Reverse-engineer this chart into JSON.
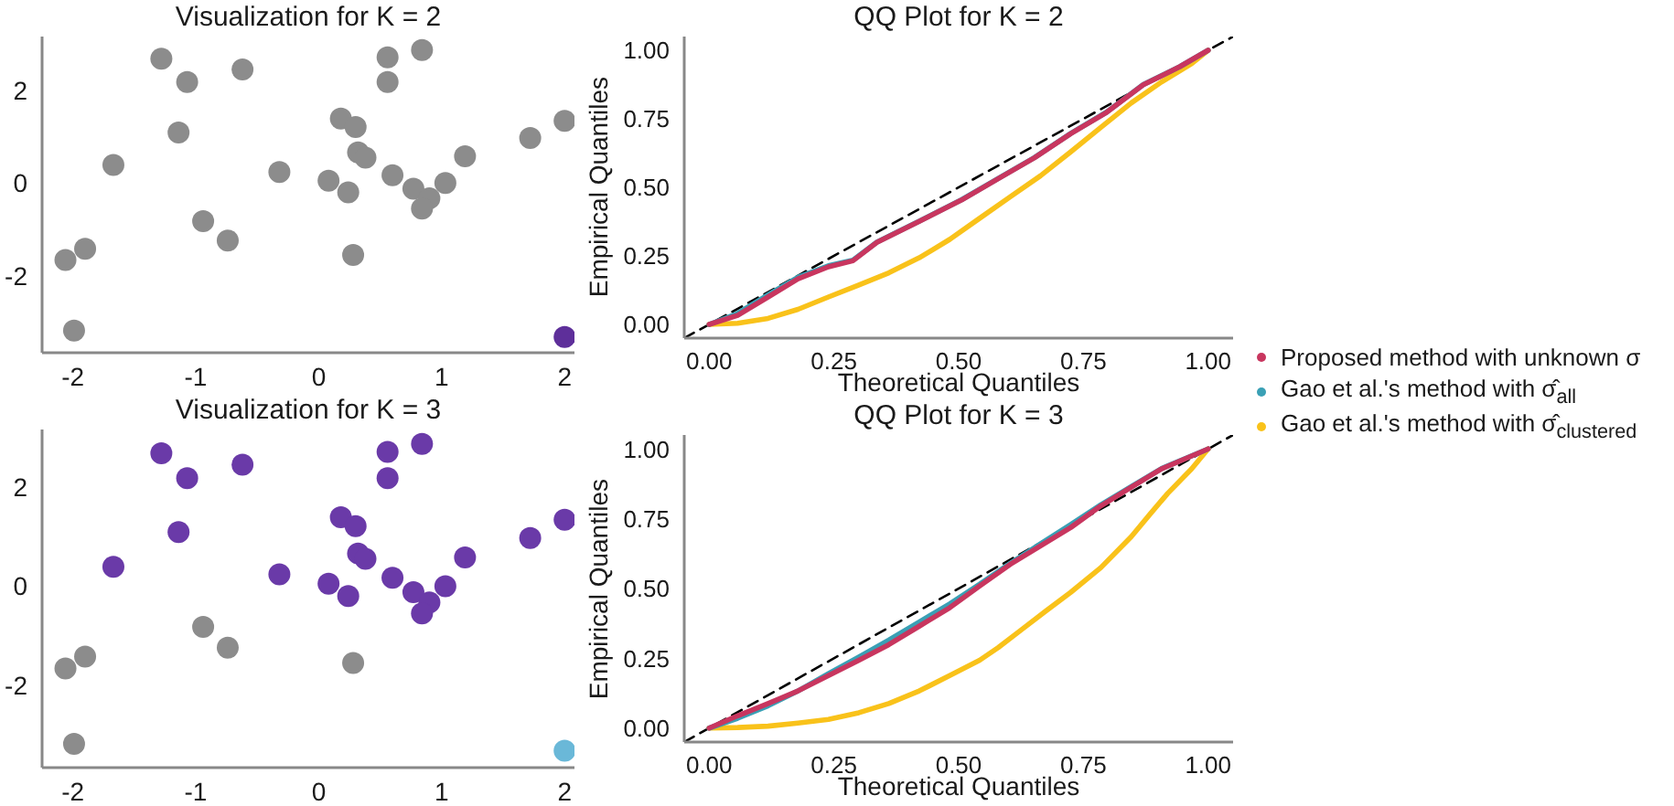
{
  "chart_data": [
    {
      "type": "scatter",
      "title": "Visualization for K = 2",
      "marker": "circle",
      "xlim": [
        -2.25,
        2.08
      ],
      "ylim": [
        -3.66,
        3.16
      ],
      "xticks": [
        -2,
        -1,
        0,
        1,
        2
      ],
      "yticks": [
        -2,
        0,
        2
      ],
      "grid": false,
      "legend": false,
      "series": [
        {
          "color": "#8c8c8c",
          "x": [
            -1.28,
            -1.07,
            -0.62,
            -1.14,
            -1.67,
            -0.94,
            -0.74,
            -1.9,
            -2.06,
            -1.99,
            -0.32,
            0.08,
            0.24,
            0.28,
            0.18,
            0.3,
            0.32,
            0.38,
            0.56,
            0.56,
            0.84,
            0.6,
            0.77,
            0.9,
            0.84,
            1.03,
            1.19,
            1.72,
            2
          ],
          "values": [
            2.68,
            2.18,
            2.45,
            1.09,
            0.39,
            -0.82,
            -1.24,
            -1.42,
            -1.66,
            -3.18,
            0.24,
            0.05,
            -0.2,
            -1.55,
            1.39,
            1.21,
            0.66,
            0.55,
            2.71,
            2.18,
            2.87,
            0.17,
            -0.12,
            -0.33,
            -0.55,
            0,
            0.58,
            0.97,
            1.34
          ]
        },
        {
          "color": "#5e2f9a",
          "x": [
            2
          ],
          "values": [
            -3.32
          ]
        }
      ]
    },
    {
      "type": "line",
      "title": "QQ Plot for K = 2",
      "xlabel": "Theoretical Quantiles",
      "ylabel": "Empirical Quantiles",
      "marker": "none",
      "xlim": [
        -0.05,
        1.05
      ],
      "ylim": [
        -0.05,
        1.05
      ],
      "xticks": [
        {
          "value": 0,
          "label": "0.00"
        },
        {
          "value": 0.25,
          "label": "0.25"
        },
        {
          "value": 0.5,
          "label": "0.50"
        },
        {
          "value": 0.75,
          "label": "0.75"
        },
        {
          "value": 1,
          "label": "1.00"
        }
      ],
      "yticks": [
        {
          "value": 0,
          "label": "0.00"
        },
        {
          "value": 0.25,
          "label": "0.25"
        },
        {
          "value": 0.5,
          "label": "0.50"
        },
        {
          "value": 0.75,
          "label": "0.75"
        },
        {
          "value": 1,
          "label": "1.00"
        }
      ],
      "grid": false,
      "legend": "right",
      "series": [
        {
          "name": "Proposed method with unknown σ",
          "color": "#c8365f",
          "x": [
            0,
            0.057,
            0.118,
            0.178,
            0.239,
            0.288,
            0.336,
            0.421,
            0.506,
            0.579,
            0.652,
            0.725,
            0.797,
            0.87,
            0.943,
            1
          ],
          "values": [
            0,
            0.033,
            0.1,
            0.166,
            0.21,
            0.232,
            0.299,
            0.376,
            0.454,
            0.531,
            0.608,
            0.696,
            0.774,
            0.874,
            0.94,
            1
          ]
        },
        {
          "name": "Gao et al.'s method with σ̂$_{all}$",
          "color": "#3aa0b5",
          "x": [
            0,
            0.057,
            0.118,
            0.178,
            0.239,
            0.288,
            0.336,
            0.421,
            0.506,
            0.579,
            0.652,
            0.725,
            0.797,
            0.87,
            0.943,
            1
          ],
          "values": [
            0,
            0.04,
            0.108,
            0.172,
            0.214,
            0.234,
            0.3,
            0.377,
            0.455,
            0.532,
            0.609,
            0.697,
            0.775,
            0.875,
            0.94,
            1
          ]
        },
        {
          "name": "Gao et al.'s method with σ̂$_{clustered}$",
          "color": "#f9c21a",
          "x": [
            0,
            0.057,
            0.118,
            0.178,
            0.239,
            0.3,
            0.36,
            0.421,
            0.482,
            0.542,
            0.603,
            0.664,
            0.725,
            0.785,
            0.846,
            0.907,
            0.967,
            1
          ],
          "values": [
            0,
            0.004,
            0.022,
            0.055,
            0.1,
            0.144,
            0.188,
            0.243,
            0.31,
            0.387,
            0.465,
            0.542,
            0.63,
            0.719,
            0.808,
            0.885,
            0.951,
            1
          ]
        },
        {
          "color": "#000000",
          "line_style": "dashed",
          "x": [
            -0.05,
            1.05
          ],
          "values": [
            -0.05,
            1.05
          ]
        }
      ]
    },
    {
      "type": "scatter",
      "title": "Visualization for K = 3",
      "marker": "circle",
      "xlim": [
        -2.25,
        2.08
      ],
      "ylim": [
        -3.66,
        3.16
      ],
      "xticks": [
        -2,
        -1,
        0,
        1,
        2
      ],
      "yticks": [
        -2,
        0,
        2
      ],
      "grid": false,
      "legend": false,
      "series": [
        {
          "color": "#6a3aa8",
          "x": [
            -1.28,
            -1.07,
            -0.62,
            -1.14,
            -1.67,
            -0.32,
            0.08,
            0.24,
            0.18,
            0.3,
            0.32,
            0.38,
            0.56,
            0.56,
            0.84,
            0.6,
            0.77,
            0.9,
            0.84,
            1.03,
            1.19,
            1.72,
            2
          ],
          "values": [
            2.68,
            2.18,
            2.45,
            1.09,
            0.39,
            0.24,
            0.05,
            -0.2,
            1.39,
            1.21,
            0.66,
            0.55,
            2.71,
            2.18,
            2.87,
            0.17,
            -0.12,
            -0.33,
            -0.55,
            0,
            0.58,
            0.97,
            1.34
          ]
        },
        {
          "color": "#8c8c8c",
          "x": [
            -0.94,
            -0.74,
            -1.9,
            -2.06,
            -1.99,
            0.28
          ],
          "values": [
            -0.82,
            -1.24,
            -1.42,
            -1.66,
            -3.18,
            -1.55
          ]
        },
        {
          "color": "#6ab8d8",
          "x": [
            2
          ],
          "values": [
            -3.32
          ]
        }
      ]
    },
    {
      "type": "line",
      "title": "QQ Plot for K = 3",
      "xlabel": "Theoretical Quantiles",
      "ylabel": "Empirical Quantiles",
      "marker": "none",
      "xlim": [
        -0.05,
        1.05
      ],
      "ylim": [
        -0.05,
        1.05
      ],
      "xticks": [
        {
          "value": 0,
          "label": "0.00"
        },
        {
          "value": 0.25,
          "label": "0.25"
        },
        {
          "value": 0.5,
          "label": "0.50"
        },
        {
          "value": 0.75,
          "label": "0.75"
        },
        {
          "value": 1,
          "label": "1.00"
        }
      ],
      "yticks": [
        {
          "value": 0,
          "label": "0.00"
        },
        {
          "value": 0.25,
          "label": "0.25"
        },
        {
          "value": 0.5,
          "label": "0.50"
        },
        {
          "value": 0.75,
          "label": "0.75"
        },
        {
          "value": 1,
          "label": "1.00"
        }
      ],
      "grid": false,
      "series": [
        {
          "color": "#c8365f",
          "x": [
            0,
            0.057,
            0.118,
            0.178,
            0.239,
            0.3,
            0.36,
            0.421,
            0.482,
            0.542,
            0.603,
            0.664,
            0.725,
            0.785,
            0.846,
            0.907,
            1
          ],
          "values": [
            0,
            0.044,
            0.088,
            0.133,
            0.188,
            0.243,
            0.299,
            0.365,
            0.431,
            0.509,
            0.586,
            0.653,
            0.719,
            0.796,
            0.863,
            0.929,
            1
          ]
        },
        {
          "color": "#3aa0b5",
          "x": [
            0,
            0.057,
            0.118,
            0.178,
            0.239,
            0.3,
            0.36,
            0.421,
            0.482,
            0.542,
            0.603,
            0.664,
            0.725,
            0.785,
            0.846,
            0.907,
            1
          ],
          "values": [
            0,
            0.035,
            0.08,
            0.133,
            0.195,
            0.255,
            0.315,
            0.38,
            0.445,
            0.515,
            0.59,
            0.66,
            0.73,
            0.8,
            0.865,
            0.93,
            1
          ]
        },
        {
          "color": "#f9c21a",
          "x": [
            0,
            0.057,
            0.118,
            0.178,
            0.239,
            0.3,
            0.36,
            0.421,
            0.482,
            0.542,
            0.579,
            0.627,
            0.675,
            0.725,
            0.785,
            0.846,
            0.882,
            0.919,
            0.967,
            1
          ],
          "values": [
            0,
            0.002,
            0.007,
            0.018,
            0.031,
            0.055,
            0.088,
            0.133,
            0.188,
            0.243,
            0.288,
            0.354,
            0.42,
            0.487,
            0.575,
            0.686,
            0.763,
            0.841,
            0.929,
            1
          ]
        },
        {
          "color": "#000000",
          "line_style": "dashed",
          "x": [
            -0.05,
            1.05
          ],
          "values": [
            -0.05,
            1.05
          ]
        }
      ]
    }
  ]
}
